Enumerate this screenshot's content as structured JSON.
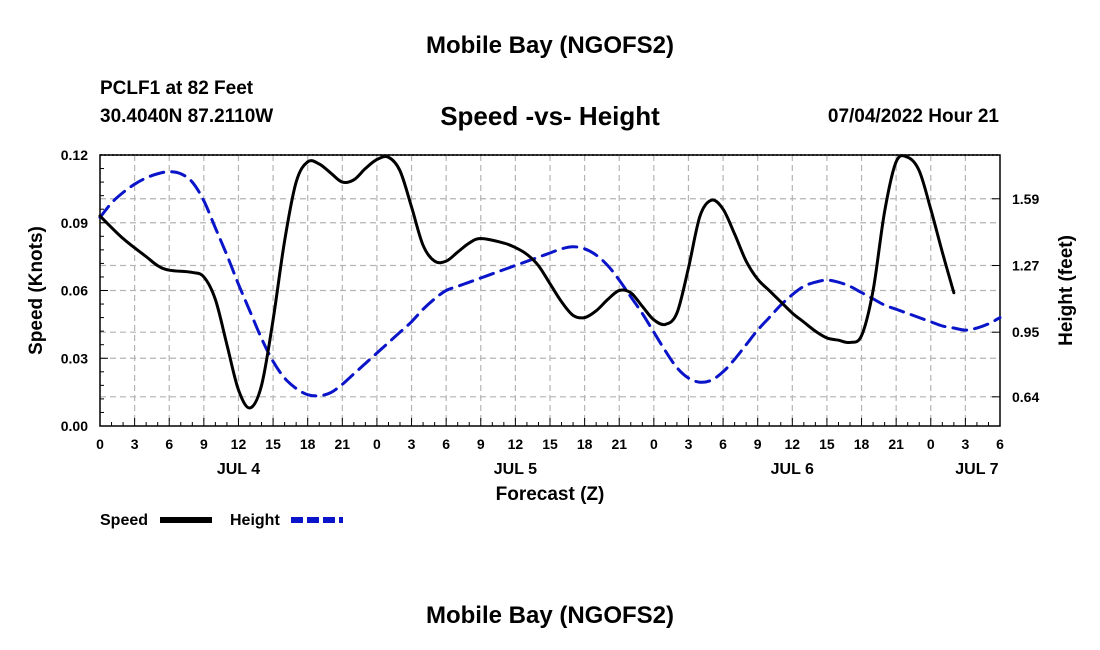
{
  "page": {
    "title_top": "Mobile Bay (NGOFS2)",
    "title_bottom": "Mobile Bay (NGOFS2)",
    "station": "PCLF1 at 82 Feet",
    "coords": "30.4040N  87.2110W",
    "datetime": "07/04/2022 Hour 21"
  },
  "colors": {
    "speed": "#000000",
    "height": "#0a14c8",
    "grid": "#b4b4b4"
  },
  "chart_data": {
    "type": "line",
    "title": "Speed -vs- Height",
    "xlabel": "Forecast (Z)",
    "ylabel": "Speed (Knots)",
    "y2label": "Height (feet)",
    "x_unit": "hours from JUL 4 00Z",
    "xlim": [
      0,
      78
    ],
    "ylim": [
      0,
      0.12
    ],
    "y2lim": [
      0.5,
      1.8
    ],
    "x_ticks": [
      0,
      3,
      6,
      9,
      12,
      15,
      18,
      21,
      24,
      27,
      30,
      33,
      36,
      39,
      42,
      45,
      48,
      51,
      54,
      57,
      60,
      63,
      66,
      69,
      72,
      75,
      78
    ],
    "x_tick_labels": [
      "0",
      "3",
      "6",
      "9",
      "12",
      "15",
      "18",
      "21",
      "0",
      "3",
      "6",
      "9",
      "12",
      "15",
      "18",
      "21",
      "0",
      "3",
      "6",
      "9",
      "12",
      "15",
      "18",
      "21",
      "0",
      "3",
      "6"
    ],
    "y_ticks": [
      0,
      0.03,
      0.06,
      0.09,
      0.12
    ],
    "y_tick_labels": [
      "0.00",
      "0.03",
      "0.06",
      "0.09",
      "0.12"
    ],
    "y2_ticks": [
      0.64,
      0.95,
      1.27,
      1.59
    ],
    "y2_tick_labels": [
      "0.64",
      "0.95",
      "1.27",
      "1.59"
    ],
    "date_labels": [
      {
        "x": 12,
        "label": "JUL 4"
      },
      {
        "x": 36,
        "label": "JUL 5"
      },
      {
        "x": 60,
        "label": "JUL 6"
      },
      {
        "x": 76,
        "label": "JUL 7"
      }
    ],
    "legend": [
      {
        "name": "Speed",
        "color": "#000000",
        "dash": false
      },
      {
        "name": "Height",
        "color": "#0a14c8",
        "dash": true
      }
    ],
    "series": [
      {
        "name": "Speed",
        "axis": "left",
        "color": "#000000",
        "dash": false,
        "points": [
          [
            0,
            0.093
          ],
          [
            2,
            0.083
          ],
          [
            4,
            0.075
          ],
          [
            5,
            0.071
          ],
          [
            6,
            0.069
          ],
          [
            8,
            0.068
          ],
          [
            9,
            0.066
          ],
          [
            10,
            0.056
          ],
          [
            11,
            0.036
          ],
          [
            12,
            0.016
          ],
          [
            13,
            0.008
          ],
          [
            14,
            0.018
          ],
          [
            15,
            0.047
          ],
          [
            16,
            0.082
          ],
          [
            17,
            0.108
          ],
          [
            18,
            0.117
          ],
          [
            19,
            0.116
          ],
          [
            20,
            0.112
          ],
          [
            21,
            0.108
          ],
          [
            22,
            0.109
          ],
          [
            23,
            0.114
          ],
          [
            24,
            0.118
          ],
          [
            25,
            0.119
          ],
          [
            26,
            0.113
          ],
          [
            27,
            0.097
          ],
          [
            28,
            0.08
          ],
          [
            29,
            0.073
          ],
          [
            30,
            0.073
          ],
          [
            31,
            0.077
          ],
          [
            32,
            0.081
          ],
          [
            33,
            0.083
          ],
          [
            35,
            0.081
          ],
          [
            36,
            0.079
          ],
          [
            37,
            0.076
          ],
          [
            38,
            0.071
          ],
          [
            39,
            0.063
          ],
          [
            40,
            0.055
          ],
          [
            41,
            0.049
          ],
          [
            42,
            0.048
          ],
          [
            43,
            0.051
          ],
          [
            44,
            0.056
          ],
          [
            45,
            0.06
          ],
          [
            46,
            0.059
          ],
          [
            47,
            0.053
          ],
          [
            48,
            0.047
          ],
          [
            49,
            0.045
          ],
          [
            50,
            0.05
          ],
          [
            51,
            0.07
          ],
          [
            52,
            0.093
          ],
          [
            53,
            0.1
          ],
          [
            54,
            0.096
          ],
          [
            55,
            0.085
          ],
          [
            56,
            0.073
          ],
          [
            57,
            0.065
          ],
          [
            58,
            0.06
          ],
          [
            59,
            0.055
          ],
          [
            60,
            0.05
          ],
          [
            61,
            0.046
          ],
          [
            62,
            0.042
          ],
          [
            63,
            0.039
          ],
          [
            64,
            0.038
          ],
          [
            65,
            0.037
          ],
          [
            66,
            0.04
          ],
          [
            67,
            0.06
          ],
          [
            68,
            0.095
          ],
          [
            69,
            0.117
          ],
          [
            70,
            0.119
          ],
          [
            71,
            0.113
          ],
          [
            72,
            0.096
          ],
          [
            73,
            0.077
          ],
          [
            74,
            0.059
          ]
        ]
      },
      {
        "name": "Height",
        "axis": "right",
        "color": "#0a14c8",
        "dash": true,
        "points": [
          [
            0,
            1.5
          ],
          [
            1,
            1.57
          ],
          [
            2,
            1.62
          ],
          [
            3,
            1.66
          ],
          [
            4,
            1.69
          ],
          [
            5,
            1.71
          ],
          [
            6,
            1.72
          ],
          [
            7,
            1.71
          ],
          [
            8,
            1.67
          ],
          [
            9,
            1.58
          ],
          [
            10,
            1.45
          ],
          [
            11,
            1.32
          ],
          [
            12,
            1.18
          ],
          [
            13,
            1.05
          ],
          [
            14,
            0.92
          ],
          [
            15,
            0.81
          ],
          [
            16,
            0.73
          ],
          [
            17,
            0.68
          ],
          [
            18,
            0.65
          ],
          [
            19,
            0.645
          ],
          [
            20,
            0.66
          ],
          [
            21,
            0.7
          ],
          [
            22,
            0.75
          ],
          [
            23,
            0.8
          ],
          [
            24,
            0.85
          ],
          [
            25,
            0.9
          ],
          [
            26,
            0.95
          ],
          [
            27,
            1.0
          ],
          [
            28,
            1.06
          ],
          [
            29,
            1.11
          ],
          [
            30,
            1.15
          ],
          [
            31,
            1.17
          ],
          [
            32,
            1.19
          ],
          [
            33,
            1.21
          ],
          [
            34,
            1.23
          ],
          [
            35,
            1.25
          ],
          [
            36,
            1.27
          ],
          [
            37,
            1.29
          ],
          [
            38,
            1.31
          ],
          [
            39,
            1.33
          ],
          [
            40,
            1.35
          ],
          [
            41,
            1.36
          ],
          [
            42,
            1.35
          ],
          [
            43,
            1.32
          ],
          [
            44,
            1.27
          ],
          [
            45,
            1.2
          ],
          [
            46,
            1.12
          ],
          [
            47,
            1.04
          ],
          [
            48,
            0.95
          ],
          [
            49,
            0.86
          ],
          [
            50,
            0.78
          ],
          [
            51,
            0.73
          ],
          [
            52,
            0.71
          ],
          [
            53,
            0.72
          ],
          [
            54,
            0.76
          ],
          [
            55,
            0.82
          ],
          [
            56,
            0.89
          ],
          [
            57,
            0.96
          ],
          [
            58,
            1.02
          ],
          [
            59,
            1.08
          ],
          [
            60,
            1.13
          ],
          [
            61,
            1.17
          ],
          [
            62,
            1.19
          ],
          [
            63,
            1.2
          ],
          [
            64,
            1.19
          ],
          [
            65,
            1.17
          ],
          [
            66,
            1.14
          ],
          [
            67,
            1.11
          ],
          [
            68,
            1.08
          ],
          [
            69,
            1.06
          ],
          [
            70,
            1.04
          ],
          [
            71,
            1.02
          ],
          [
            72,
            1.0
          ],
          [
            73,
            0.98
          ],
          [
            74,
            0.97
          ],
          [
            75,
            0.96
          ],
          [
            76,
            0.97
          ],
          [
            77,
            0.99
          ],
          [
            78,
            1.02
          ]
        ]
      }
    ]
  }
}
